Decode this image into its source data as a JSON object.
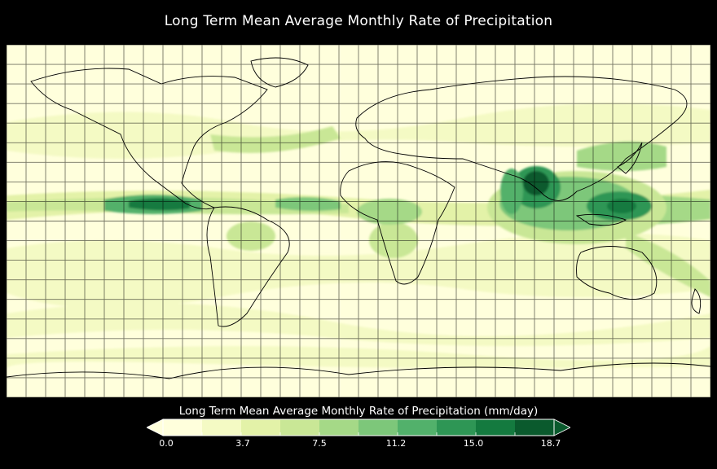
{
  "title": "Long Term Mean Average Monthly Rate of Precipitation",
  "colorbar": {
    "label": "Long Term Mean Average Monthly Rate of Precipitation (mm/day)",
    "ticks": [
      "0.0",
      "3.7",
      "7.5",
      "11.2",
      "15.0",
      "18.7"
    ],
    "colors": [
      "#ffffdc",
      "#f4fac4",
      "#e3f2a8",
      "#c9e796",
      "#a5d987",
      "#7dc77a",
      "#52b16b",
      "#2e9655",
      "#147a3f",
      "#0a5a2d"
    ],
    "extend_low_color": "#ffffdc",
    "extend_high_color": "#0a5a2d"
  },
  "map": {
    "projection": "equirectangular",
    "ocean_color": "#ffffdc",
    "graticule": true,
    "coastlines": true,
    "country_borders": true
  }
}
